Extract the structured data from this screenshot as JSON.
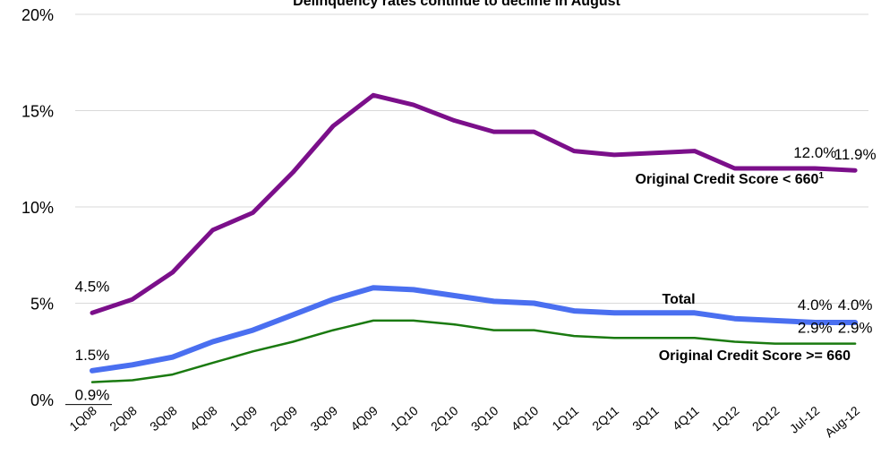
{
  "chart_data": {
    "type": "line",
    "title": "Delinquency rates continue to decline in August",
    "xlabel": "",
    "ylabel": "",
    "ylim": [
      0,
      20
    ],
    "yticks": [
      "0%",
      "5%",
      "10%",
      "15%",
      "20%"
    ],
    "grid": true,
    "categories": [
      "1Q08",
      "2Q08",
      "3Q08",
      "4Q08",
      "1Q09",
      "2Q09",
      "3Q09",
      "4Q09",
      "1Q10",
      "2Q10",
      "3Q10",
      "4Q10",
      "1Q11",
      "2Q11",
      "3Q11",
      "4Q11",
      "1Q12",
      "2Q12",
      "Jul-12",
      "Aug-12"
    ],
    "series": [
      {
        "name": "Original Credit Score < 660",
        "label_sup": "1",
        "color": "#7b0f8a",
        "values": [
          4.5,
          5.2,
          6.6,
          8.8,
          9.7,
          11.8,
          14.2,
          15.8,
          15.3,
          14.5,
          13.9,
          13.9,
          12.9,
          12.7,
          12.8,
          12.9,
          12.0,
          12.0,
          12.0,
          11.9
        ],
        "labels": [
          {
            "index": 0,
            "text": "4.5%"
          },
          {
            "index": 18,
            "text": "12.0%"
          },
          {
            "index": 19,
            "text": "11.9%"
          }
        ]
      },
      {
        "name": "Total",
        "color": "#4a6ff0",
        "values": [
          1.5,
          1.8,
          2.2,
          3.0,
          3.6,
          4.4,
          5.2,
          5.8,
          5.7,
          5.4,
          5.1,
          5.0,
          4.6,
          4.5,
          4.5,
          4.5,
          4.2,
          4.1,
          4.0,
          4.0
        ],
        "labels": [
          {
            "index": 0,
            "text": "1.5%"
          },
          {
            "index": 18,
            "text": "4.0%"
          },
          {
            "index": 19,
            "text": "4.0%"
          }
        ]
      },
      {
        "name": "Original Credit Score >= 660",
        "color": "#1a7a10",
        "values": [
          0.9,
          1.0,
          1.3,
          1.9,
          2.5,
          3.0,
          3.6,
          4.1,
          4.1,
          3.9,
          3.6,
          3.6,
          3.3,
          3.2,
          3.2,
          3.2,
          3.0,
          2.9,
          2.9,
          2.9
        ],
        "labels": [
          {
            "index": 0,
            "text": "0.9%"
          },
          {
            "index": 18,
            "text": "2.9%"
          },
          {
            "index": 19,
            "text": "2.9%"
          }
        ]
      }
    ]
  }
}
